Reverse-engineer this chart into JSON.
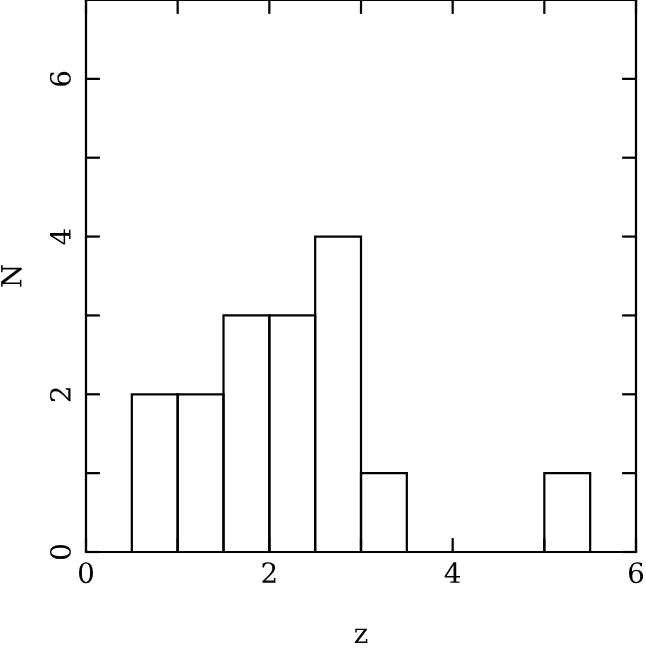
{
  "chart_data": {
    "type": "histogram",
    "xlabel": "z",
    "ylabel": "N",
    "bins": [
      0.5,
      1.0,
      1.5,
      2.0,
      2.5,
      3.0,
      3.5,
      4.0,
      4.5,
      5.0,
      5.5
    ],
    "values": [
      2,
      2,
      3,
      3,
      4,
      1,
      0,
      0,
      0,
      1
    ],
    "color": "#000000",
    "xlim": [
      0,
      6
    ],
    "ylim": [
      0,
      7
    ],
    "xticks": [
      0,
      {
        "value": 1,
        "label": null
      },
      2,
      {
        "value": 3,
        "label": null
      },
      4,
      {
        "value": 5,
        "label": null
      },
      6
    ],
    "yticks": [
      0,
      {
        "value": 1,
        "label": null
      },
      2,
      {
        "value": 3,
        "label": null
      },
      4,
      {
        "value": 5,
        "label": null
      },
      6
    ],
    "grid": false
  }
}
